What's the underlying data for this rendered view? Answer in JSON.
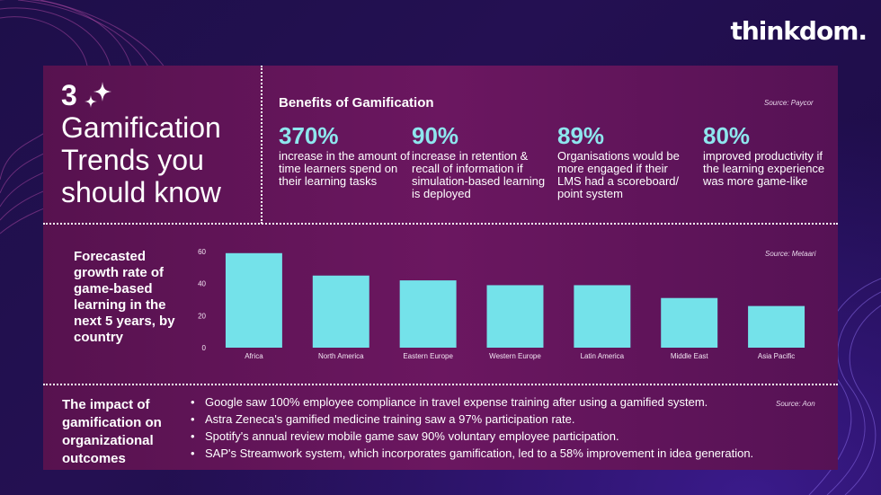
{
  "brand": {
    "logo": "thinkdom."
  },
  "heading": {
    "number": "3",
    "title": "Gamification Trends you should know"
  },
  "benefits": {
    "title": "Benefits of Gamification",
    "source": "Source: Paycor",
    "stats": [
      {
        "value": "370%",
        "text": "increase in the amount of time learners spend on their learning tasks"
      },
      {
        "value": "90%",
        "text": "increase in retention & recall of information if simulation-based learning is deployed"
      },
      {
        "value": "89%",
        "text": "Organisations would be more engaged if their LMS had a scoreboard/ point system"
      },
      {
        "value": "80%",
        "text": "improved productivity if the learning experience was more game-like"
      }
    ]
  },
  "chart_section": {
    "title": "Forecasted growth rate of game-based learning in the next 5 years, by country"
  },
  "chart_data": {
    "type": "bar",
    "title": "Forecasted growth rate of game-based learning in the next 5 years, by country",
    "source": "Source: Metaari",
    "categories": [
      "Africa",
      "North America",
      "Eastern Europe",
      "Western Europe",
      "Latin America",
      "Middle East",
      "Asia Pacific"
    ],
    "values": [
      59,
      45,
      42,
      39,
      39,
      31,
      26
    ],
    "ylim": [
      0,
      60
    ],
    "yticks": [
      0,
      20,
      40,
      60
    ],
    "xlabel": "",
    "ylabel": "",
    "bar_color": "#74e2ea"
  },
  "impact": {
    "title": "The impact of gamification on organizational outcomes",
    "source": "Source: Aon",
    "bullet": "•",
    "items": [
      "Google saw 100% employee compliance in travel expense training after using a gamified system.",
      "Astra Zeneca's gamified medicine training saw a 97% participation rate.",
      "Spotify's annual review mobile game saw 90% voluntary employee participation.",
      "SAP's Streamwork system, which incorporates gamification, led to a 58% improvement in idea generation."
    ]
  }
}
